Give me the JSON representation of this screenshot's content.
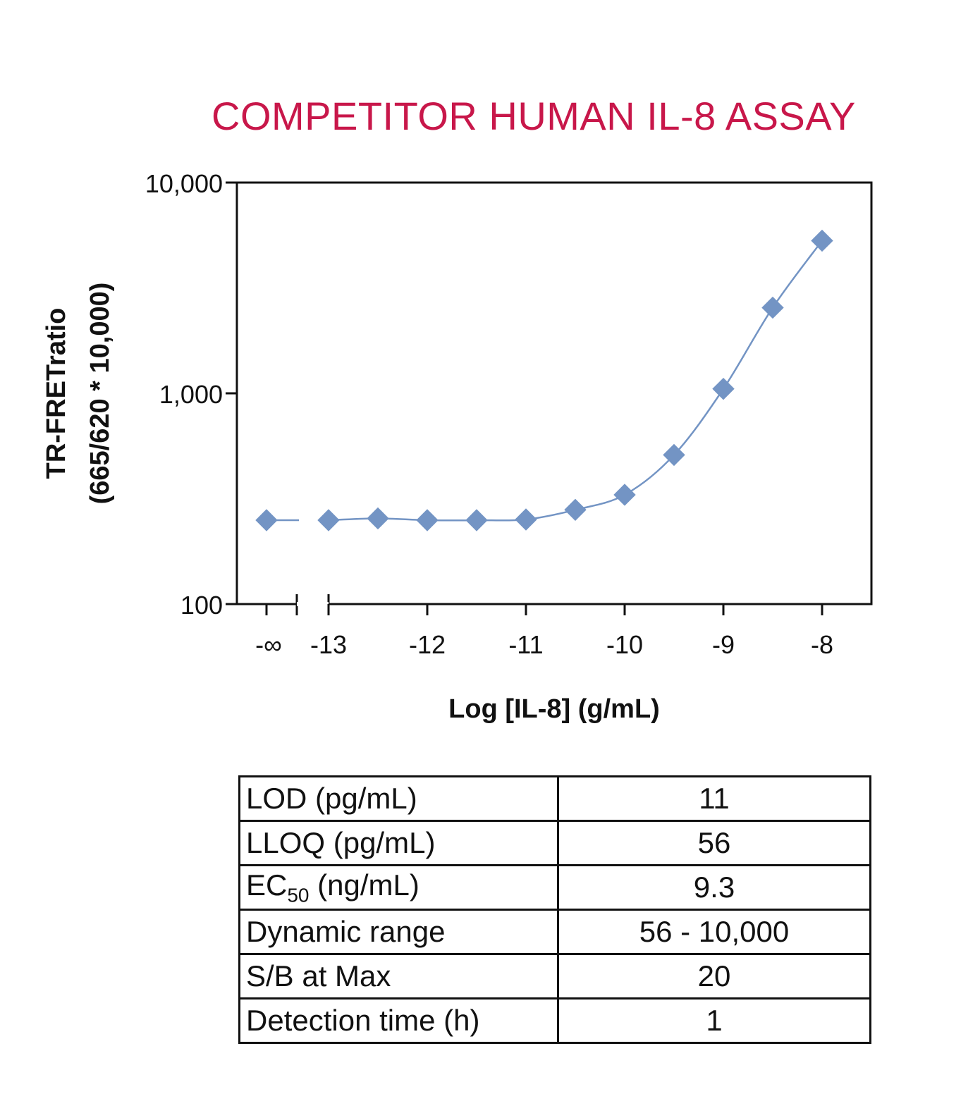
{
  "chart_data": {
    "type": "scatter",
    "title": "COMPETITOR HUMAN IL-8 ASSAY",
    "xlabel": "Log [IL-8] (g/mL)",
    "ylabel": [
      "TR-FRETratio",
      "(665/620 * 10,000)"
    ],
    "yscale": "log",
    "ylim": [
      100,
      10000
    ],
    "yticks": [
      100,
      1000,
      10000
    ],
    "ytick_labels": [
      "100",
      "1,000",
      "10,000"
    ],
    "xticks": [
      -13,
      -12,
      -11,
      -10,
      -9,
      -8
    ],
    "xtick_labels": [
      "-13",
      "-12",
      "-11",
      "-10",
      "-9",
      "-8"
    ],
    "xlim": [
      -13.3,
      -7.5
    ],
    "broken_axis_label": "-∞",
    "zero_point": {
      "x_label": "-∞",
      "y": 250
    },
    "series": [
      {
        "color": "#7394c4",
        "marker": "diamond",
        "x": [
          -13,
          -12.5,
          -12,
          -11.5,
          -11,
          -10.5,
          -10,
          -9.5,
          -9,
          -8.5,
          -8
        ],
        "y": [
          250,
          255,
          250,
          250,
          252,
          280,
          330,
          510,
          1050,
          2550,
          5300
        ]
      }
    ],
    "grid": false,
    "legend": "none"
  },
  "table": {
    "rows": [
      {
        "param": "LOD (pg/mL)",
        "value": "11"
      },
      {
        "param": "LLOQ (pg/mL)",
        "value": "56"
      },
      {
        "param_main": "EC",
        "param_sub": "50",
        "param_rest": " (ng/mL)",
        "value": "9.3"
      },
      {
        "param": "Dynamic range",
        "value": "56 - 10,000"
      },
      {
        "param": "S/B at Max",
        "value": "20"
      },
      {
        "param": "Detection time (h)",
        "value": "1"
      }
    ]
  }
}
